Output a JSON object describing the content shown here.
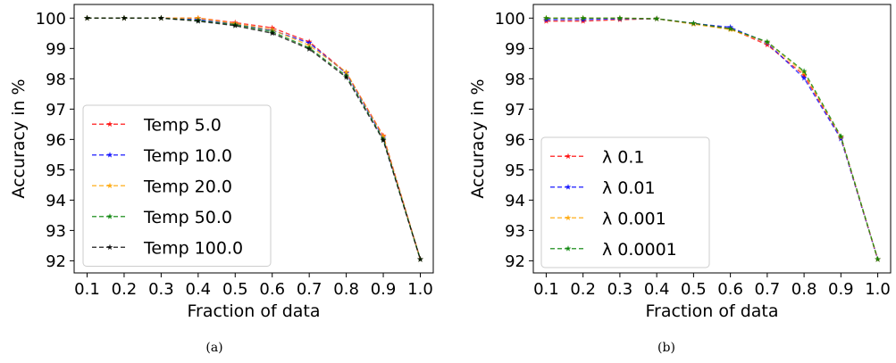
{
  "chart_data": [
    {
      "type": "line",
      "caption": "(a)",
      "xlabel": "Fraction of data",
      "ylabel": "Accuracy in %",
      "x": [
        0.1,
        0.2,
        0.3,
        0.4,
        0.5,
        0.6,
        0.7,
        0.8,
        0.9,
        1.0
      ],
      "xticks": [
        "0.1",
        "0.2",
        "0.3",
        "0.4",
        "0.5",
        "0.6",
        "0.7",
        "0.8",
        "0.9",
        "1.0"
      ],
      "yticks": [
        "92",
        "93",
        "94",
        "95",
        "96",
        "97",
        "98",
        "99",
        "100"
      ],
      "xlim": [
        0.065,
        1.035
      ],
      "ylim": [
        91.6,
        100.45
      ],
      "grid": false,
      "legend_position": "lower-left",
      "series": [
        {
          "name": "Temp 5.0",
          "color": "#ff0000",
          "values": [
            100.0,
            100.0,
            100.0,
            100.0,
            99.85,
            99.68,
            99.22,
            98.2,
            96.12,
            92.05
          ]
        },
        {
          "name": "Temp 10.0",
          "color": "#0000ff",
          "values": [
            100.0,
            100.0,
            100.0,
            99.95,
            99.8,
            99.6,
            99.18,
            98.18,
            96.05,
            92.05
          ]
        },
        {
          "name": "Temp 20.0",
          "color": "#ffa500",
          "values": [
            100.0,
            100.0,
            100.0,
            100.0,
            99.82,
            99.62,
            99.1,
            98.22,
            96.1,
            92.05
          ]
        },
        {
          "name": "Temp 50.0",
          "color": "#008000",
          "values": [
            100.0,
            100.0,
            100.0,
            99.92,
            99.78,
            99.55,
            99.02,
            98.1,
            96.0,
            92.05
          ]
        },
        {
          "name": "Temp 100.0",
          "color": "#000000",
          "values": [
            100.0,
            100.0,
            100.0,
            99.9,
            99.75,
            99.5,
            98.98,
            98.05,
            95.97,
            92.05
          ]
        }
      ]
    },
    {
      "type": "line",
      "caption": "(b)",
      "xlabel": "Fraction of data",
      "ylabel": "Accuracy in %",
      "x": [
        0.1,
        0.2,
        0.3,
        0.4,
        0.5,
        0.6,
        0.7,
        0.8,
        0.9,
        1.0
      ],
      "xticks": [
        "0.1",
        "0.2",
        "0.3",
        "0.4",
        "0.5",
        "0.6",
        "0.7",
        "0.8",
        "0.9",
        "1.0"
      ],
      "yticks": [
        "92",
        "93",
        "94",
        "95",
        "96",
        "97",
        "98",
        "99",
        "100"
      ],
      "xlim": [
        0.065,
        1.035
      ],
      "ylim": [
        91.6,
        100.45
      ],
      "grid": false,
      "legend_position": "lower-left",
      "series": [
        {
          "name": "λ 0.1",
          "color": "#ff0000",
          "values": [
            99.9,
            99.9,
            99.95,
            99.98,
            99.82,
            99.65,
            99.12,
            98.12,
            96.05,
            92.05
          ]
        },
        {
          "name": "λ 0.01",
          "color": "#0000ff",
          "values": [
            99.95,
            99.95,
            99.98,
            99.98,
            99.82,
            99.7,
            99.18,
            98.02,
            96.02,
            92.05
          ]
        },
        {
          "name": "λ 0.001",
          "color": "#ffa500",
          "values": [
            100.0,
            100.0,
            100.0,
            99.98,
            99.8,
            99.62,
            99.2,
            98.2,
            96.08,
            92.05
          ]
        },
        {
          "name": "λ 0.0001",
          "color": "#008000",
          "values": [
            100.0,
            100.0,
            100.0,
            99.98,
            99.83,
            99.65,
            99.22,
            98.25,
            96.1,
            92.05
          ]
        }
      ]
    }
  ]
}
